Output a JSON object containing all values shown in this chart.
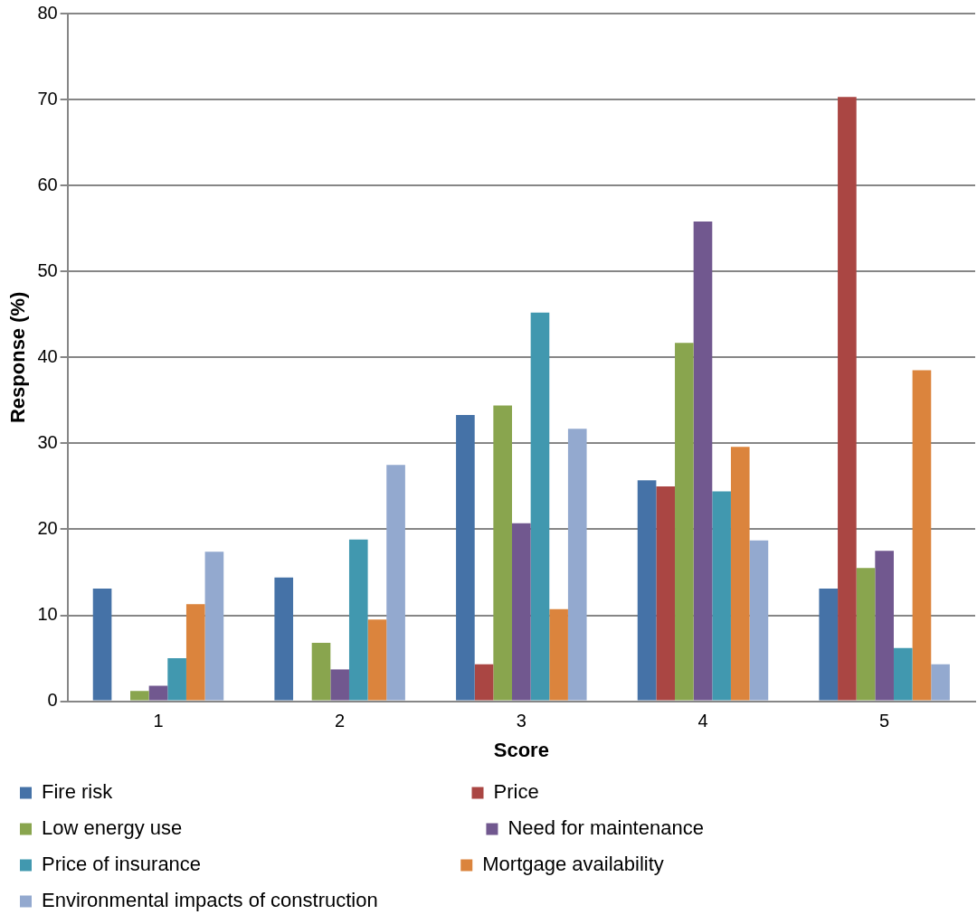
{
  "chart_data": {
    "type": "bar",
    "xlabel": "Score",
    "ylabel": "Response (%)",
    "categories": [
      "1",
      "2",
      "3",
      "4",
      "5"
    ],
    "series": [
      {
        "name": "Fire risk",
        "color": "#4572a7",
        "values": [
          13.1,
          14.4,
          33.3,
          25.7,
          13.1
        ]
      },
      {
        "name": "Price",
        "color": "#aa4643",
        "values": [
          0,
          0,
          4.3,
          25.0,
          70.3
        ]
      },
      {
        "name": "Low energy use",
        "color": "#89a54e",
        "values": [
          1.2,
          6.8,
          34.4,
          41.7,
          15.5
        ]
      },
      {
        "name": "Need for maintenance",
        "color": "#71588f",
        "values": [
          1.8,
          3.7,
          20.7,
          55.8,
          17.5
        ]
      },
      {
        "name": "Price of insurance",
        "color": "#4198af",
        "values": [
          5.0,
          18.8,
          45.2,
          24.4,
          6.2
        ]
      },
      {
        "name": "Mortgage availability",
        "color": "#db843d",
        "values": [
          11.3,
          9.5,
          10.7,
          29.6,
          38.5
        ]
      },
      {
        "name": "Environmental impacts of construction",
        "color": "#93a9cf",
        "values": [
          17.4,
          27.5,
          31.7,
          18.7,
          4.3
        ]
      }
    ],
    "ylim": [
      0,
      80
    ],
    "yticks": [
      0,
      10,
      20,
      30,
      40,
      50,
      60,
      70,
      80
    ],
    "grid": "y",
    "legend": "bottom"
  }
}
